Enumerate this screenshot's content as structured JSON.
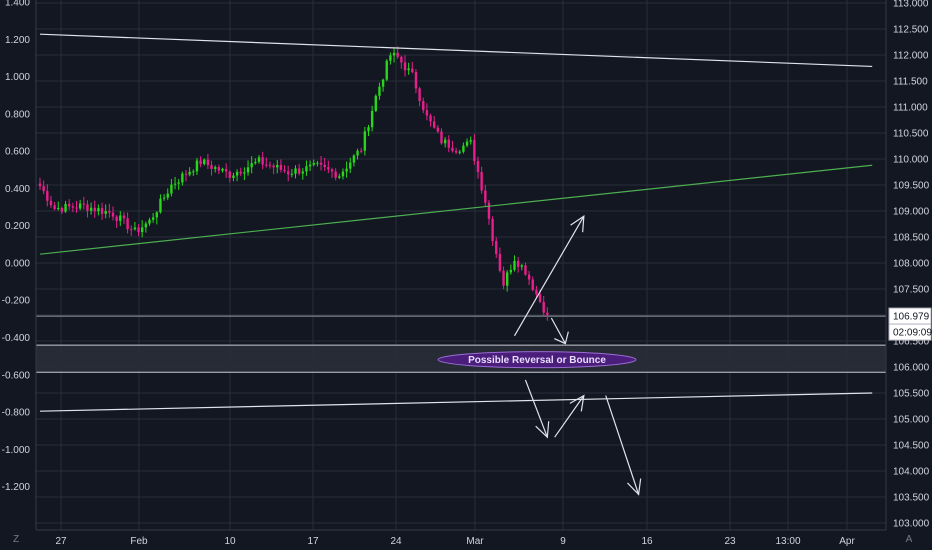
{
  "chart_data": {
    "type": "candlestick",
    "left_axis": {
      "ticks": [
        "1.400",
        "1.200",
        "1.000",
        "0.800",
        "0.600",
        "0.400",
        "0.200",
        "0.000",
        "-0.200",
        "-0.400",
        "-0.600",
        "-0.800",
        "-1.000",
        "-1.200"
      ],
      "range": [
        -1.39,
        1.4
      ]
    },
    "right_axis": {
      "ticks": [
        "113.000",
        "112.500",
        "112.000",
        "111.500",
        "111.000",
        "110.500",
        "110.000",
        "109.500",
        "109.000",
        "108.500",
        "108.000",
        "107.500",
        "107.000",
        "106.500",
        "106.000",
        "105.500",
        "105.000",
        "104.500",
        "104.000",
        "103.500",
        "103.000"
      ],
      "range": [
        103.0,
        113.0
      ],
      "current_price": "106.979",
      "countdown": "02:09:09"
    },
    "x_ticks": [
      "27",
      "Feb",
      "10",
      "17",
      "24",
      "Mar",
      "9",
      "16",
      "23",
      "13:00",
      "Apr"
    ],
    "close_path": [
      {
        "bar": 0,
        "price": 109.48
      },
      {
        "bar": 4,
        "price": 109.05
      },
      {
        "bar": 12,
        "price": 109.1
      },
      {
        "bar": 20,
        "price": 108.95
      },
      {
        "bar": 26,
        "price": 108.6
      },
      {
        "bar": 30,
        "price": 108.8
      },
      {
        "bar": 36,
        "price": 109.5
      },
      {
        "bar": 44,
        "price": 109.95
      },
      {
        "bar": 52,
        "price": 109.7
      },
      {
        "bar": 60,
        "price": 109.95
      },
      {
        "bar": 68,
        "price": 109.75
      },
      {
        "bar": 76,
        "price": 109.85
      },
      {
        "bar": 82,
        "price": 109.7
      },
      {
        "bar": 88,
        "price": 110.2
      },
      {
        "bar": 92,
        "price": 111.2
      },
      {
        "bar": 96,
        "price": 112.0
      },
      {
        "bar": 98,
        "price": 111.95
      },
      {
        "bar": 102,
        "price": 111.6
      },
      {
        "bar": 106,
        "price": 110.8
      },
      {
        "bar": 110,
        "price": 110.35
      },
      {
        "bar": 114,
        "price": 110.2
      },
      {
        "bar": 118,
        "price": 110.3
      },
      {
        "bar": 122,
        "price": 109.2
      },
      {
        "bar": 124,
        "price": 108.5
      },
      {
        "bar": 127,
        "price": 107.6
      },
      {
        "bar": 130,
        "price": 108.1
      },
      {
        "bar": 133,
        "price": 107.85
      },
      {
        "bar": 136,
        "price": 107.4
      },
      {
        "bar": 139,
        "price": 107.0
      }
    ],
    "levels": {
      "current": 106.979,
      "zone_top": 106.42,
      "zone_bottom": 105.9
    },
    "trendlines": [
      {
        "name": "upper-resistance",
        "color": "#e0e3eb",
        "from": {
          "bar": 0,
          "price": 112.4
        },
        "to": {
          "bar": 228,
          "price": 111.78
        }
      },
      {
        "name": "green-support",
        "color": "#4caf50",
        "from": {
          "bar": 0,
          "price": 108.17
        },
        "to": {
          "bar": 228,
          "price": 109.88
        }
      },
      {
        "name": "lower-support",
        "color": "#e0e3eb",
        "from": {
          "bar": 0,
          "price": 105.15
        },
        "to": {
          "bar": 228,
          "price": 105.5
        }
      }
    ],
    "annotation": "Possible Reversal or Bounce",
    "projections": [
      {
        "from": {
          "bar": 130,
          "price": 106.6
        },
        "to": {
          "bar": 149,
          "price": 108.9
        }
      },
      {
        "from": {
          "bar": 133,
          "price": 105.75
        },
        "to": {
          "bar": 139,
          "price": 104.65
        }
      },
      {
        "from": {
          "bar": 141,
          "price": 104.65
        },
        "to": {
          "bar": 149,
          "price": 105.45
        }
      },
      {
        "from": {
          "bar": 155,
          "price": 105.45
        },
        "to": {
          "bar": 164,
          "price": 103.55
        }
      }
    ],
    "colors": {
      "background": "#131722",
      "up": "#26d71a",
      "down": "#e91e8c",
      "grid": "#2a2e39",
      "text": "#d1d4dc"
    },
    "grid": true
  },
  "corner_left": "Z",
  "corner_right": "A"
}
